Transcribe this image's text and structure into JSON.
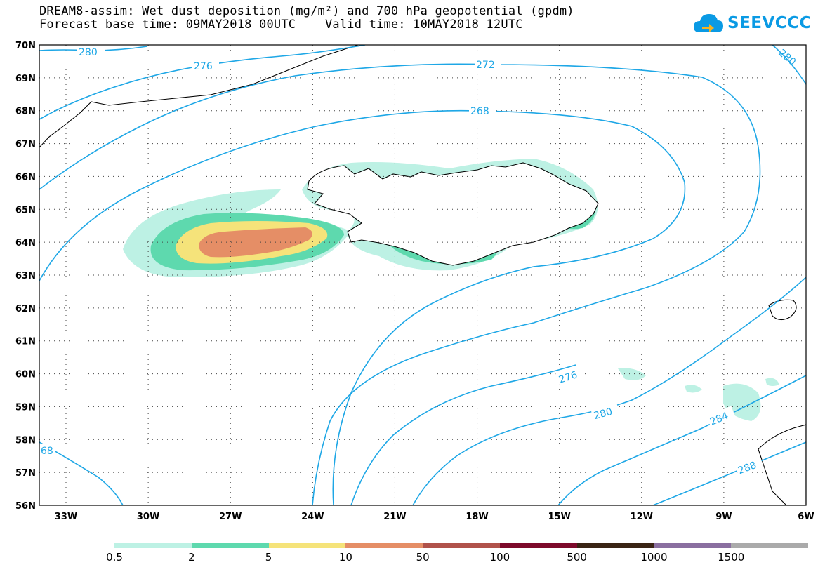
{
  "header": {
    "title_line1": "DREAM8-assim: Wet dust deposition (mg/m²) and 700 hPa geopotential (gpdm)",
    "title_line2": "Forecast base time: 09MAY2018 00UTC    Valid time: 10MAY2018 12UTC"
  },
  "logo": {
    "text": "SEEVCCC",
    "icon": "cloud-icon",
    "color": "#0a9ae4"
  },
  "map": {
    "lat_labels": [
      "70N",
      "69N",
      "68N",
      "67N",
      "66N",
      "65N",
      "64N",
      "63N",
      "62N",
      "61N",
      "60N",
      "59N",
      "58N",
      "57N",
      "56N"
    ],
    "lon_labels": [
      "33W",
      "30W",
      "27W",
      "24W",
      "21W",
      "18W",
      "15W",
      "12W",
      "9W",
      "6W"
    ],
    "contour_color": "#1ea7e6",
    "contour_labels": [
      "280",
      "276",
      "272",
      "268",
      "280",
      "276",
      "280",
      "284",
      "288",
      "68"
    ]
  },
  "legend": {
    "labels": [
      "0.5",
      "2",
      "5",
      "10",
      "50",
      "100",
      "500",
      "1000",
      "1500"
    ],
    "colors": [
      "#bdf1e4",
      "#5ed9ae",
      "#f5e37a",
      "#e58e66",
      "#b0524a",
      "#7d0a2b",
      "#3a2414",
      "#8a6fa0",
      "#aaaaaa"
    ]
  }
}
